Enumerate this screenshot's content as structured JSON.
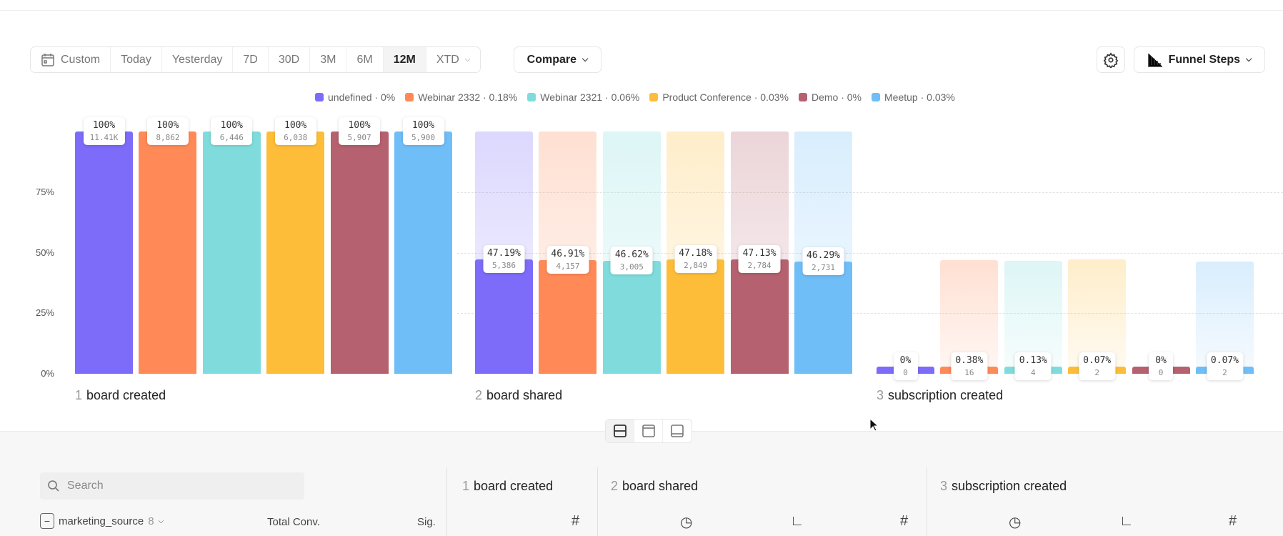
{
  "toolbar": {
    "ranges": [
      "Custom",
      "Today",
      "Yesterday",
      "7D",
      "30D",
      "3M",
      "6M",
      "12M",
      "XTD"
    ],
    "active_range": "12M",
    "compare_label": "Compare",
    "funnel_label": "Funnel Steps"
  },
  "colors": {
    "undefined": "#7d6bfa",
    "Webinar 2332": "#ff8a57",
    "Webinar 2321": "#80dcdc",
    "Product Conference": "#fdbd38",
    "Demo": "#b5616f",
    "Meetup": "#6fbef7"
  },
  "chart_data": {
    "type": "bar",
    "ylim": [
      0,
      100
    ],
    "yticks": [
      "0%",
      "25%",
      "50%",
      "75%"
    ],
    "legend": [
      {
        "name": "undefined",
        "text": "undefined · 0%"
      },
      {
        "name": "Webinar 2332",
        "text": "Webinar 2332 · 0.18%"
      },
      {
        "name": "Webinar 2321",
        "text": "Webinar 2321 · 0.06%"
      },
      {
        "name": "Product Conference",
        "text": "Product Conference · 0.03%"
      },
      {
        "name": "Demo",
        "text": "Demo · 0%"
      },
      {
        "name": "Meetup",
        "text": "Meetup · 0.03%"
      }
    ],
    "steps": [
      {
        "num": "1",
        "name": "board created",
        "pct": [
          100,
          100,
          100,
          100,
          100,
          100
        ],
        "pct_labels": [
          "100%",
          "100%",
          "100%",
          "100%",
          "100%",
          "100%"
        ],
        "counts": [
          "11.41K",
          "8,862",
          "6,446",
          "6,038",
          "5,907",
          "5,900"
        ]
      },
      {
        "num": "2",
        "name": "board shared",
        "pct": [
          47.19,
          46.91,
          46.62,
          47.18,
          47.13,
          46.29
        ],
        "pct_labels": [
          "47.19%",
          "46.91%",
          "46.62%",
          "47.18%",
          "47.13%",
          "46.29%"
        ],
        "counts": [
          "5,386",
          "4,157",
          "3,005",
          "2,849",
          "2,784",
          "2,731"
        ]
      },
      {
        "num": "3",
        "name": "subscription created",
        "pct": [
          0,
          0.38,
          0.13,
          0.07,
          0,
          0.07
        ],
        "pct_labels": [
          "0%",
          "0.38%",
          "0.13%",
          "0.07%",
          "0%",
          "0.07%"
        ],
        "counts": [
          "0",
          "16",
          "4",
          "2",
          "0",
          "2"
        ]
      }
    ]
  },
  "table": {
    "search_placeholder": "Search",
    "group_label": "marketing_source",
    "group_count": "8",
    "total_conv": "Total Conv.",
    "sig": "Sig."
  }
}
